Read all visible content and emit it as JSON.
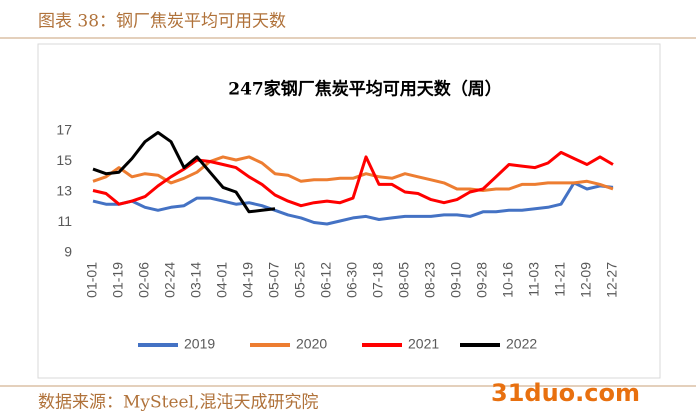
{
  "header": {
    "title": "图表 38：钢厂焦炭平均可用天数"
  },
  "footer": {
    "source": "数据来源：MySteel,混沌天成研究院",
    "watermark": "31duo.com"
  },
  "chart_data": {
    "type": "line",
    "title": "247家钢厂焦炭平均可用天数（周）",
    "categories": [
      "01-01",
      null,
      "01-19",
      null,
      "02-06",
      null,
      "02-24",
      null,
      "03-14",
      null,
      "04-01",
      null,
      "04-19",
      null,
      "05-07",
      null,
      "05-25",
      null,
      "06-12",
      null,
      "06-30",
      null,
      "07-18",
      null,
      "08-05",
      null,
      "08-23",
      null,
      "09-10",
      null,
      "09-28",
      null,
      "10-16",
      null,
      "11-03",
      null,
      "11-21",
      null,
      "12-09",
      null,
      "12-27"
    ],
    "series": [
      {
        "name": "2019",
        "color": "#4472c4",
        "values": [
          12.4,
          12.2,
          12.2,
          12.4,
          12.0,
          11.8,
          12.0,
          12.1,
          12.6,
          12.6,
          12.4,
          12.2,
          12.3,
          12.1,
          11.8,
          11.5,
          11.3,
          11.0,
          10.9,
          11.1,
          11.3,
          11.4,
          11.2,
          11.3,
          11.4,
          11.4,
          11.4,
          11.5,
          11.5,
          11.4,
          11.7,
          11.7,
          11.8,
          11.8,
          11.9,
          12.0,
          12.2,
          13.6,
          13.2,
          13.4,
          13.3
        ]
      },
      {
        "name": "2020",
        "color": "#ed7d31",
        "values": [
          13.7,
          14.0,
          14.6,
          14.0,
          14.2,
          14.1,
          13.6,
          13.9,
          14.3,
          15.0,
          15.3,
          15.1,
          15.3,
          14.9,
          14.2,
          14.1,
          13.7,
          13.8,
          13.8,
          13.9,
          13.9,
          14.2,
          14.0,
          13.9,
          14.2,
          14.0,
          13.8,
          13.6,
          13.2,
          13.2,
          13.1,
          13.2,
          13.2,
          13.5,
          13.5,
          13.6,
          13.6,
          13.6,
          13.7,
          13.5,
          13.2
        ]
      },
      {
        "name": "2021",
        "color": "#ff0000",
        "values": [
          13.1,
          12.9,
          12.2,
          12.4,
          12.7,
          13.4,
          14.0,
          14.5,
          15.1,
          15.0,
          14.8,
          14.6,
          14.0,
          13.5,
          12.8,
          12.4,
          12.1,
          12.3,
          12.4,
          12.3,
          12.6,
          15.3,
          13.5,
          13.5,
          13.0,
          12.9,
          12.5,
          12.3,
          12.5,
          13.0,
          13.2,
          14.0,
          14.8,
          14.7,
          14.6,
          14.9,
          15.6,
          15.2,
          14.8,
          15.3,
          14.8
        ]
      },
      {
        "name": "2022",
        "color": "#000000",
        "values": [
          14.5,
          14.2,
          14.3,
          15.2,
          16.3,
          16.9,
          16.3,
          14.6,
          15.3,
          14.3,
          13.3,
          13.0,
          11.7,
          11.8,
          11.9,
          null,
          null,
          null,
          null,
          null,
          null,
          null,
          null,
          null,
          null,
          null,
          null,
          null,
          null,
          null,
          null,
          null,
          null,
          null,
          null,
          null,
          null,
          null,
          null,
          null,
          null
        ]
      }
    ],
    "ylim": [
      9,
      17
    ],
    "yticks": [
      9,
      11,
      13,
      15,
      17
    ],
    "grid": false,
    "legend": "bottom"
  }
}
